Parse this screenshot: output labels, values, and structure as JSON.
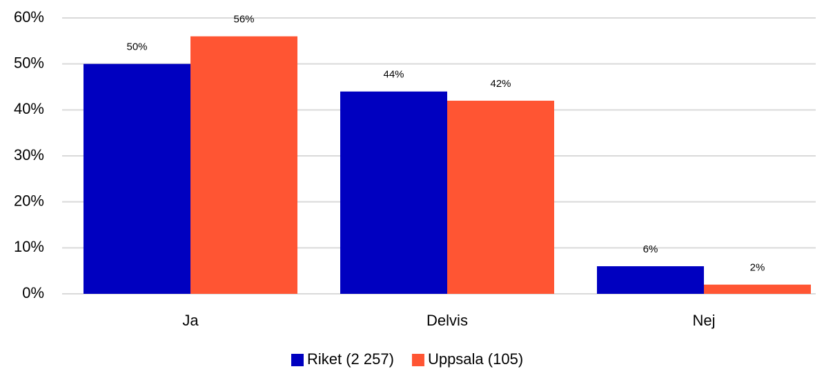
{
  "chart_data": {
    "type": "bar",
    "categories": [
      "Ja",
      "Delvis",
      "Nej"
    ],
    "series": [
      {
        "name": "Riket (2 257)",
        "color": "#0000c0",
        "values": [
          50,
          44,
          6
        ],
        "value_labels": [
          "50%",
          "44%",
          "6%"
        ]
      },
      {
        "name": "Uppsala (105)",
        "color": "#ff5533",
        "values": [
          56,
          42,
          2
        ],
        "value_labels": [
          "56%",
          "42%",
          "2%"
        ]
      }
    ],
    "ylim": [
      0,
      60
    ],
    "yticks": [
      {
        "value": 0,
        "label": "0%"
      },
      {
        "value": 10,
        "label": "10%"
      },
      {
        "value": 20,
        "label": "20%"
      },
      {
        "value": 30,
        "label": "30%"
      },
      {
        "value": 40,
        "label": "40%"
      },
      {
        "value": 50,
        "label": "50%"
      },
      {
        "value": 60,
        "label": "60%"
      }
    ],
    "grid": true,
    "legend": "bottom"
  }
}
